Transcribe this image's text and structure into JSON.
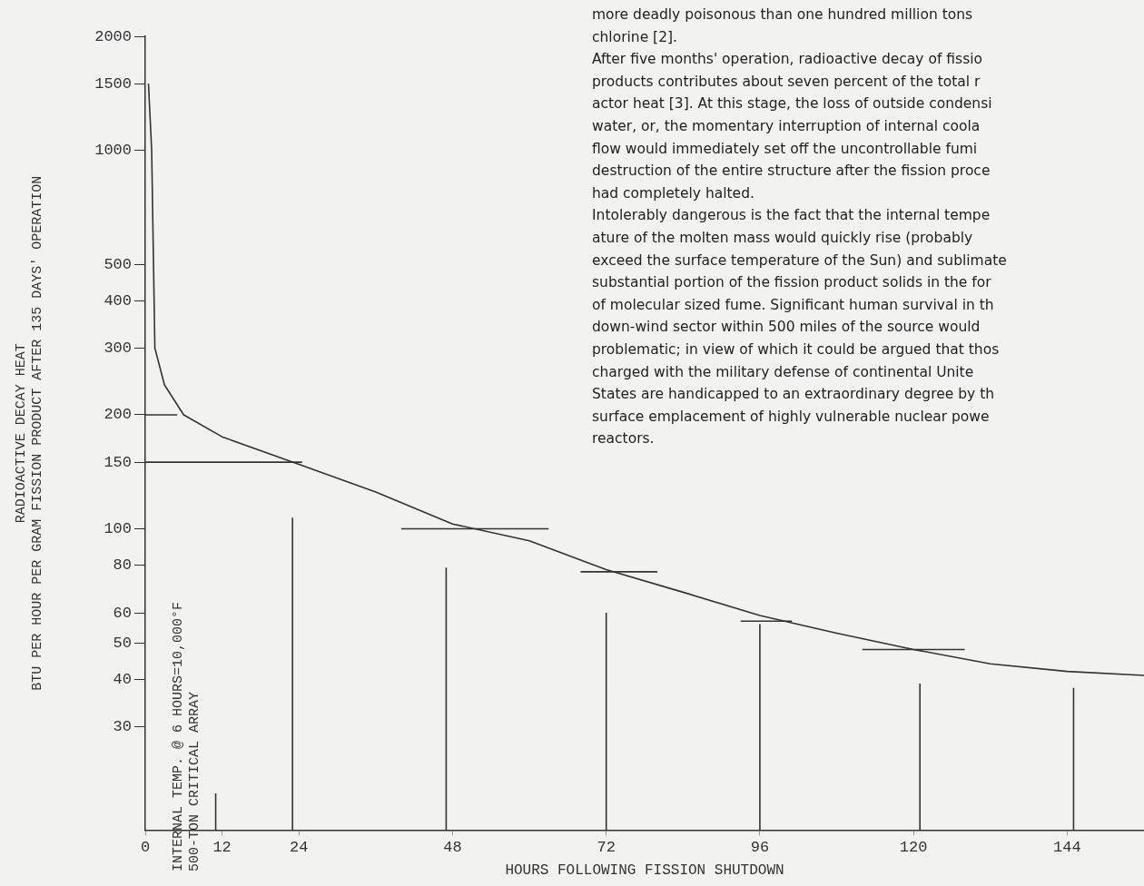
{
  "chart_data": {
    "type": "line",
    "xlabel": "HOURS FOLLOWING FISSION SHUTDOWN",
    "ylabel": "RADIOACTIVE DECAY HEAT\nBTU PER HOUR PER GRAM FISSION PRODUCT AFTER 135 DAYS' OPERATION",
    "log": "y",
    "grid": false,
    "legend": false,
    "marker": "none",
    "line_style": "solid",
    "xlim": [
      0,
      156
    ],
    "xticks": [
      0,
      12,
      24,
      48,
      72,
      96,
      120,
      144
    ],
    "ylim": [
      16,
      2000
    ],
    "yticks": [
      30,
      40,
      50,
      60,
      80,
      100,
      150,
      200,
      300,
      400,
      500,
      1000,
      1500,
      2000
    ],
    "series": [
      {
        "color": "#333333",
        "x": [
          0.5,
          1,
          1.5,
          3,
          6,
          12,
          24,
          36,
          48,
          60,
          72,
          84,
          96,
          108,
          120,
          132,
          144,
          156
        ],
        "values": [
          1500,
          1000,
          300,
          240,
          200,
          175,
          148,
          125,
          103,
          93,
          78,
          68,
          59,
          53,
          48,
          44,
          42,
          41
        ]
      },
      {
        "color": "#333333",
        "x": [
          0,
          5
        ],
        "values": [
          200,
          200
        ]
      },
      {
        "color": "#333333",
        "x": [
          0,
          24.5
        ],
        "values": [
          150,
          150
        ]
      },
      {
        "color": "#333333",
        "x": [
          40,
          63
        ],
        "values": [
          100,
          100
        ]
      },
      {
        "color": "#333333",
        "x": [
          68,
          80
        ],
        "values": [
          77,
          77
        ]
      },
      {
        "color": "#333333",
        "x": [
          93,
          101
        ],
        "values": [
          57,
          57
        ]
      },
      {
        "color": "#333333",
        "x": [
          112,
          128
        ],
        "values": [
          48,
          48
        ]
      },
      {
        "color": "#333333",
        "x": [
          11,
          11
        ],
        "values": [
          16,
          20
        ]
      },
      {
        "color": "#333333",
        "x": [
          23,
          23
        ],
        "values": [
          16,
          107
        ]
      },
      {
        "color": "#333333",
        "x": [
          47,
          47
        ],
        "values": [
          16,
          79
        ]
      },
      {
        "color": "#333333",
        "x": [
          72,
          72
        ],
        "values": [
          16,
          60
        ]
      },
      {
        "color": "#333333",
        "x": [
          96,
          96
        ],
        "values": [
          16,
          56
        ]
      },
      {
        "color": "#333333",
        "x": [
          121,
          121
        ],
        "values": [
          16,
          39
        ]
      },
      {
        "color": "#333333",
        "x": [
          145,
          145
        ],
        "values": [
          16,
          38
        ]
      }
    ],
    "annotations": [
      "INTERNAL TEMP. @ 6 HOURS=10,000°F\n500-TON CRITICAL ARRAY",
      "more deadly poisonous than one hundred million tons\nchlorine [2].\nAfter five months' operation, radioactive decay of fissio\nproducts contributes about seven percent of the total r\nactor heat [3]. At this stage, the loss of outside condensi\nwater, or, the momentary interruption of internal coola\nflow would immediately set off the uncontrollable fumi\ndestruction of the entire structure after the fission proce\nhad completely halted.\nIntolerably dangerous is the fact that the internal tempe\nature of the molten mass would quickly rise (probably\nexceed the surface temperature of the Sun) and sublimate\nsubstantial portion of the fission product solids in the for\nof molecular sized fume. Significant human survival in th\ndown-wind sector within 500 miles of the source would\nproblematic; in view of which it could be argued that thos\ncharged with the military defense of continental Unite\nStates are handicapped to an extraordinary degree by th\nsurface emplacement of highly vulnerable nuclear powe\nreactors."
    ]
  }
}
